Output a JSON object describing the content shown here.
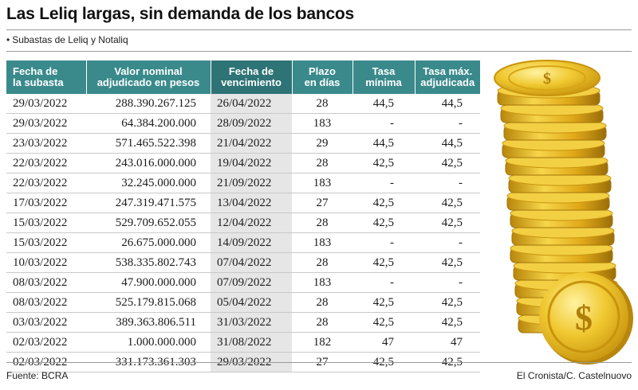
{
  "title": "Las Leliq largas, sin demanda de los bancos",
  "subtitle_bullet": "•",
  "subtitle": "Subastas de Leliq y Notaliq",
  "table": {
    "headers": {
      "fecha_subasta": [
        "Fecha de",
        "la subasta"
      ],
      "valor_nominal": [
        "Valor nominal",
        "adjudicado en pesos"
      ],
      "fecha_vencimiento": [
        "Fecha de",
        "vencimiento"
      ],
      "plazo": [
        "Plazo",
        "en días"
      ],
      "tasa_minima": [
        "Tasa",
        "mínima"
      ],
      "tasa_maxima": [
        "Tasa máx.",
        "adjudicada"
      ]
    },
    "rows": [
      [
        "29/03/2022",
        "288.390.267.125",
        "26/04/2022",
        "28",
        "44,5",
        "44,5"
      ],
      [
        "29/03/2022",
        "64.384.200.000",
        "28/09/2022",
        "183",
        "-",
        "-"
      ],
      [
        "23/03/2022",
        "571.465.522.398",
        "21/04/2022",
        "29",
        "44,5",
        "44,5"
      ],
      [
        "22/03/2022",
        "243.016.000.000",
        "19/04/2022",
        "28",
        "42,5",
        "42,5"
      ],
      [
        "22/03/2022",
        "32.245.000.000",
        "21/09/2022",
        "183",
        "-",
        "-"
      ],
      [
        "17/03/2022",
        "247.319.471.575",
        "13/04/2022",
        "27",
        "42,5",
        "42,5"
      ],
      [
        "15/03/2022",
        "529.709.652.055",
        "12/04/2022",
        "28",
        "42,5",
        "42,5"
      ],
      [
        "15/03/2022",
        "26.675.000.000",
        "14/09/2022",
        "183",
        "-",
        "-"
      ],
      [
        "10/03/2022",
        "538.335.802.743",
        "07/04/2022",
        "28",
        "42,5",
        "42,5"
      ],
      [
        "08/03/2022",
        "47.900.000.000",
        "07/09/2022",
        "183",
        "-",
        "-"
      ],
      [
        "08/03/2022",
        "525.179.815.068",
        "05/04/2022",
        "28",
        "42,5",
        "42,5"
      ],
      [
        "03/03/2022",
        "389.363.806.511",
        "31/03/2022",
        "28",
        "42,5",
        "42,5"
      ],
      [
        "02/03/2022",
        "1.000.000.000",
        "31/08/2022",
        "182",
        "47",
        "47"
      ],
      [
        "02/03/2022",
        "331.173.361.303",
        "29/03/2022",
        "27",
        "42,5",
        "42,5"
      ]
    ]
  },
  "source": "Fuente: BCRA",
  "credit": "El Cronista/C. Castelnuovo",
  "colors": {
    "header_teal": "#3a8a8c",
    "header_teal_dark": "#2e7375",
    "row_shade": "#e6e6e6",
    "coin_gold": "#e8b820"
  },
  "illustration": {
    "icon": "gold-coin-stack-icon",
    "coin_symbol": "$"
  }
}
